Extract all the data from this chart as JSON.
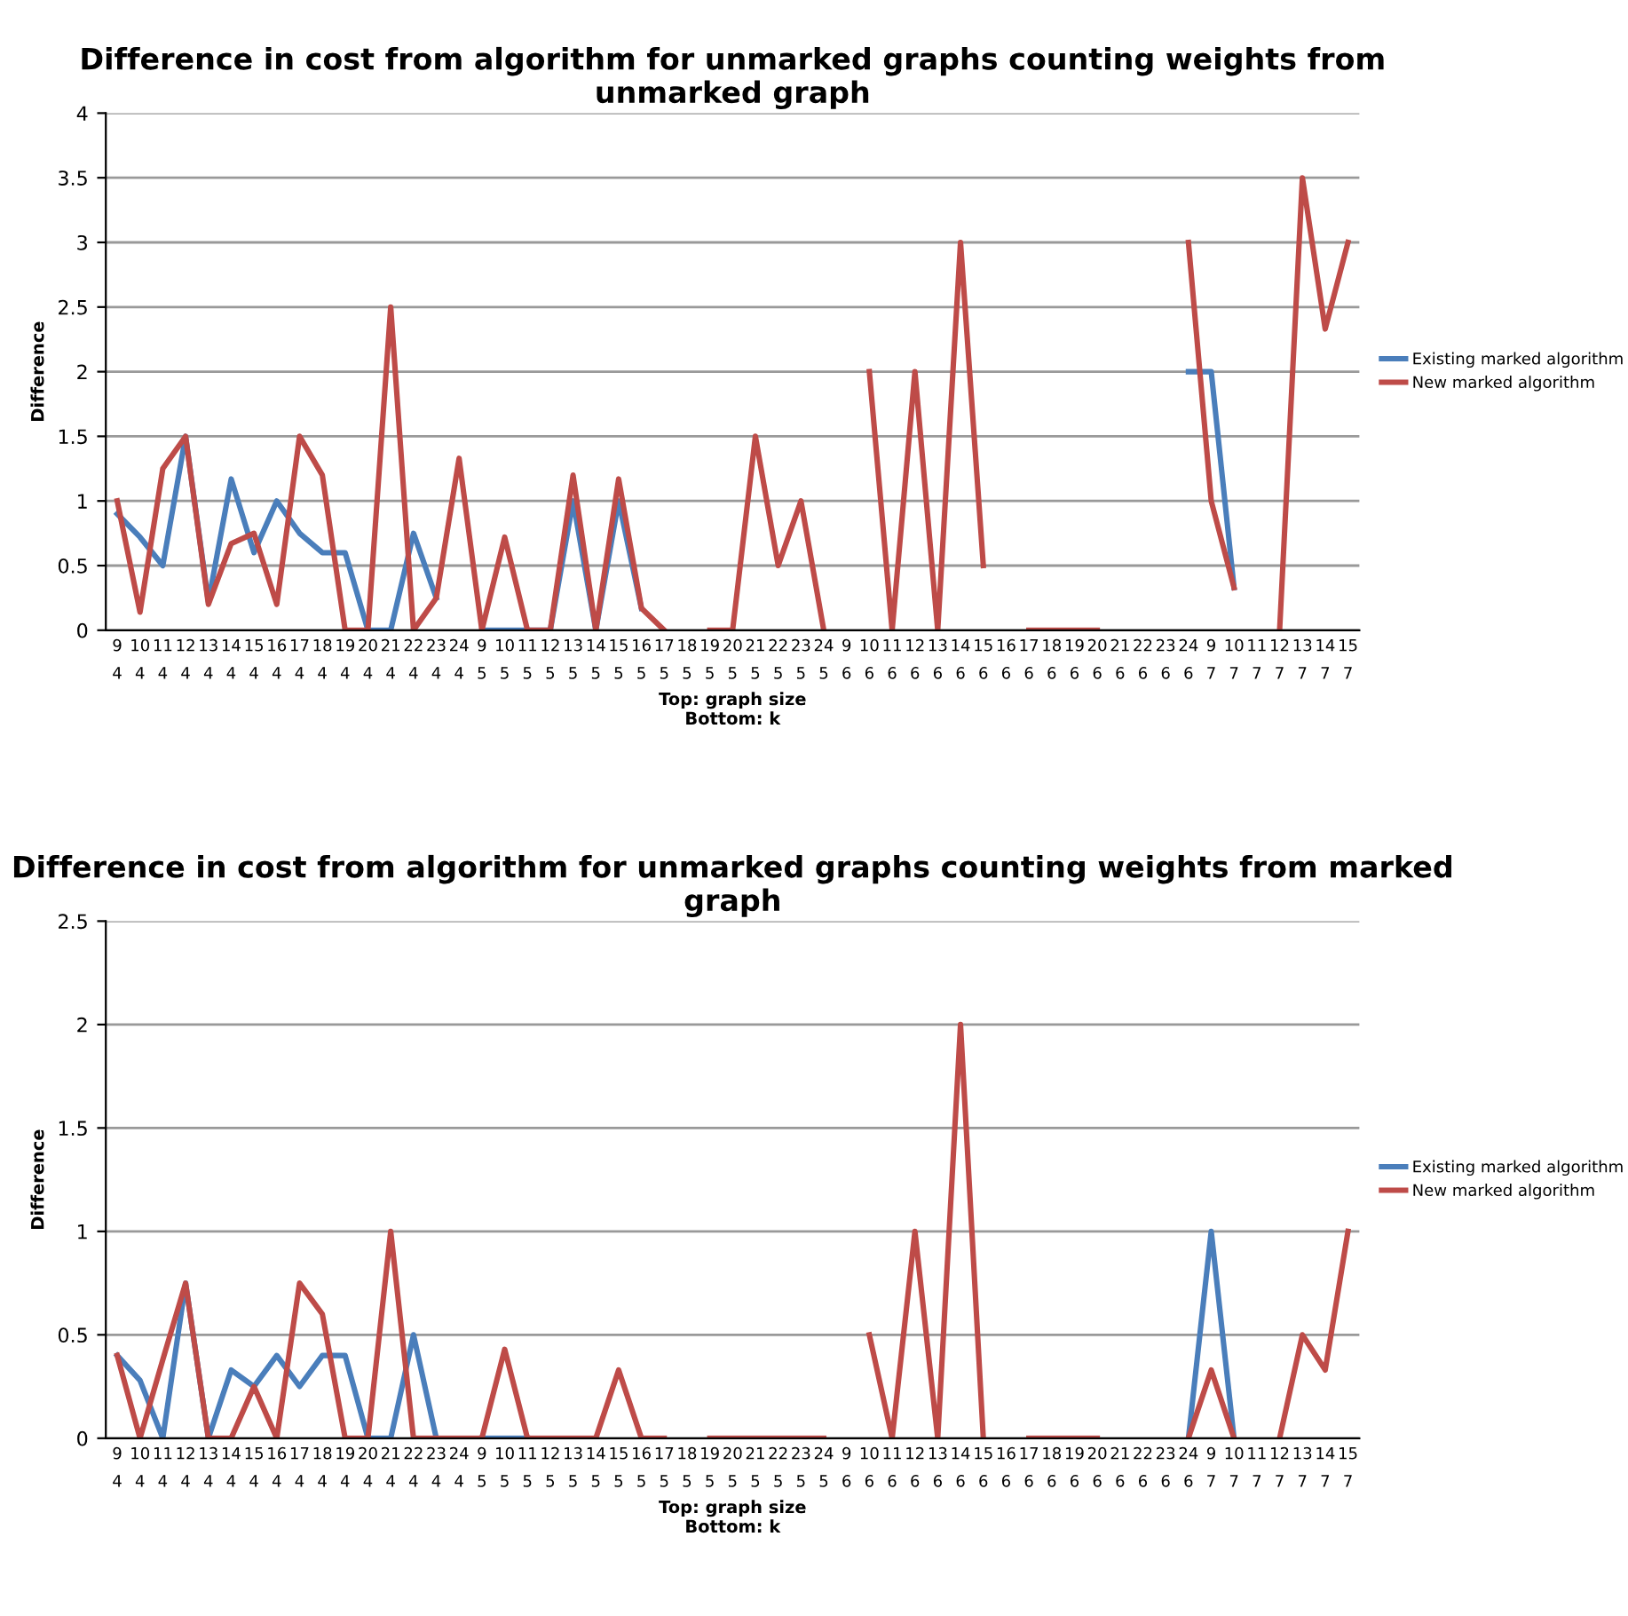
{
  "chart_data": [
    {
      "type": "line",
      "title": "Difference in cost from algorithm for unmarked graphs counting weights from unmarked graph",
      "xlabel": "Top: graph size\nBottom: k",
      "ylabel": "Difference",
      "categories": [
        "9\n4",
        "10\n4",
        "11\n4",
        "12\n4",
        "13\n4",
        "14\n4",
        "15\n4",
        "16\n4",
        "17\n4",
        "18\n4",
        "19\n4",
        "20\n4",
        "21\n4",
        "22\n4",
        "23\n4",
        "24\n4",
        "9\n5",
        "10\n5",
        "11\n5",
        "12\n5",
        "13\n5",
        "14\n5",
        "15\n5",
        "16\n5",
        "17\n5",
        "18\n5",
        "19\n5",
        "20\n5",
        "21\n5",
        "22\n5",
        "23\n5",
        "24\n5",
        "9\n6",
        "10\n6",
        "11\n6",
        "12\n6",
        "13\n6",
        "14\n6",
        "15\n6",
        "16\n6",
        "17\n6",
        "18\n6",
        "19\n6",
        "20\n6",
        "21\n6",
        "22\n6",
        "23\n6",
        "24\n6",
        "9\n7",
        "10\n7",
        "11\n7",
        "12\n7",
        "13\n7",
        "14\n7",
        "15\n7"
      ],
      "series": [
        {
          "name": "Existing marked algorithm",
          "color": "#4a7ebb",
          "values": [
            0.9,
            0.72,
            0.5,
            1.5,
            0.22,
            1.17,
            0.6,
            1.0,
            0.75,
            0.6,
            0.6,
            0,
            0,
            0.75,
            0.25,
            null,
            0,
            0,
            0,
            0,
            1.0,
            0,
            1.0,
            0.17,
            null,
            null,
            null,
            null,
            null,
            null,
            null,
            null,
            null,
            null,
            null,
            null,
            null,
            null,
            null,
            null,
            null,
            null,
            null,
            null,
            null,
            null,
            null,
            2,
            2,
            0.33,
            null,
            null,
            null,
            null,
            null
          ]
        },
        {
          "name": "New marked algorithm",
          "color": "#be4b48",
          "values": [
            1.0,
            0.14,
            1.25,
            1.5,
            0.2,
            0.67,
            0.75,
            0.2,
            1.5,
            1.2,
            0,
            0,
            2.5,
            0,
            0.25,
            1.33,
            0,
            0.72,
            0,
            0,
            1.2,
            0,
            1.17,
            0.17,
            0,
            null,
            0,
            0,
            1.5,
            0.5,
            1.0,
            0,
            null,
            2,
            0,
            2,
            0,
            3,
            0.5,
            null,
            0,
            0,
            0,
            0,
            null,
            null,
            null,
            3,
            1.0,
            0.33,
            null,
            0,
            3.5,
            2.33,
            3
          ]
        }
      ],
      "ylim": [
        0,
        4
      ],
      "yticks": [
        0,
        0.5,
        1,
        1.5,
        2,
        2.5,
        3,
        3.5,
        4
      ],
      "grid": "y",
      "legend": "right",
      "marker": "none",
      "line_style": "solid"
    },
    {
      "type": "line",
      "title": "Difference in cost from algorithm for unmarked graphs counting weights from marked graph",
      "xlabel": "Top: graph size\nBottom: k",
      "ylabel": "Difference",
      "categories": [
        "9\n4",
        "10\n4",
        "11\n4",
        "12\n4",
        "13\n4",
        "14\n4",
        "15\n4",
        "16\n4",
        "17\n4",
        "18\n4",
        "19\n4",
        "20\n4",
        "21\n4",
        "22\n4",
        "23\n4",
        "24\n4",
        "9\n5",
        "10\n5",
        "11\n5",
        "12\n5",
        "13\n5",
        "14\n5",
        "15\n5",
        "16\n5",
        "17\n5",
        "18\n5",
        "19\n5",
        "20\n5",
        "21\n5",
        "22\n5",
        "23\n5",
        "24\n5",
        "9\n6",
        "10\n6",
        "11\n6",
        "12\n6",
        "13\n6",
        "14\n6",
        "15\n6",
        "16\n6",
        "17\n6",
        "18\n6",
        "19\n6",
        "20\n6",
        "21\n6",
        "22\n6",
        "23\n6",
        "24\n6",
        "9\n7",
        "10\n7",
        "11\n7",
        "12\n7",
        "13\n7",
        "14\n7",
        "15\n7"
      ],
      "series": [
        {
          "name": "Existing marked algorithm",
          "color": "#4a7ebb",
          "values": [
            0.4,
            0.28,
            0,
            0.75,
            0,
            0.33,
            0.25,
            0.4,
            0.25,
            0.4,
            0.4,
            0,
            0,
            0.5,
            0,
            null,
            0,
            0,
            0,
            null,
            null,
            null,
            null,
            null,
            null,
            null,
            null,
            null,
            null,
            null,
            null,
            null,
            null,
            null,
            null,
            null,
            null,
            null,
            null,
            null,
            null,
            null,
            null,
            null,
            null,
            null,
            null,
            0,
            1.0,
            0,
            null,
            null,
            null,
            null,
            null
          ]
        },
        {
          "name": "New marked algorithm",
          "color": "#be4b48",
          "values": [
            0.4,
            0,
            0.38,
            0.75,
            0,
            0,
            0.25,
            0,
            0.75,
            0.6,
            0,
            0,
            1.0,
            0,
            0,
            0,
            0,
            0.43,
            0,
            0,
            0,
            0,
            0.33,
            0,
            0,
            null,
            0,
            0,
            0,
            0,
            0,
            0,
            null,
            0.5,
            0,
            1.0,
            0,
            2.0,
            0,
            null,
            0,
            0,
            0,
            0,
            null,
            null,
            null,
            0,
            0.33,
            0,
            null,
            0,
            0.5,
            0.33,
            1.0
          ]
        }
      ],
      "ylim": [
        0,
        2.5
      ],
      "yticks": [
        0,
        0.5,
        1,
        1.5,
        2,
        2.5
      ],
      "grid": "y",
      "legend": "right",
      "marker": "none",
      "line_style": "solid"
    }
  ]
}
